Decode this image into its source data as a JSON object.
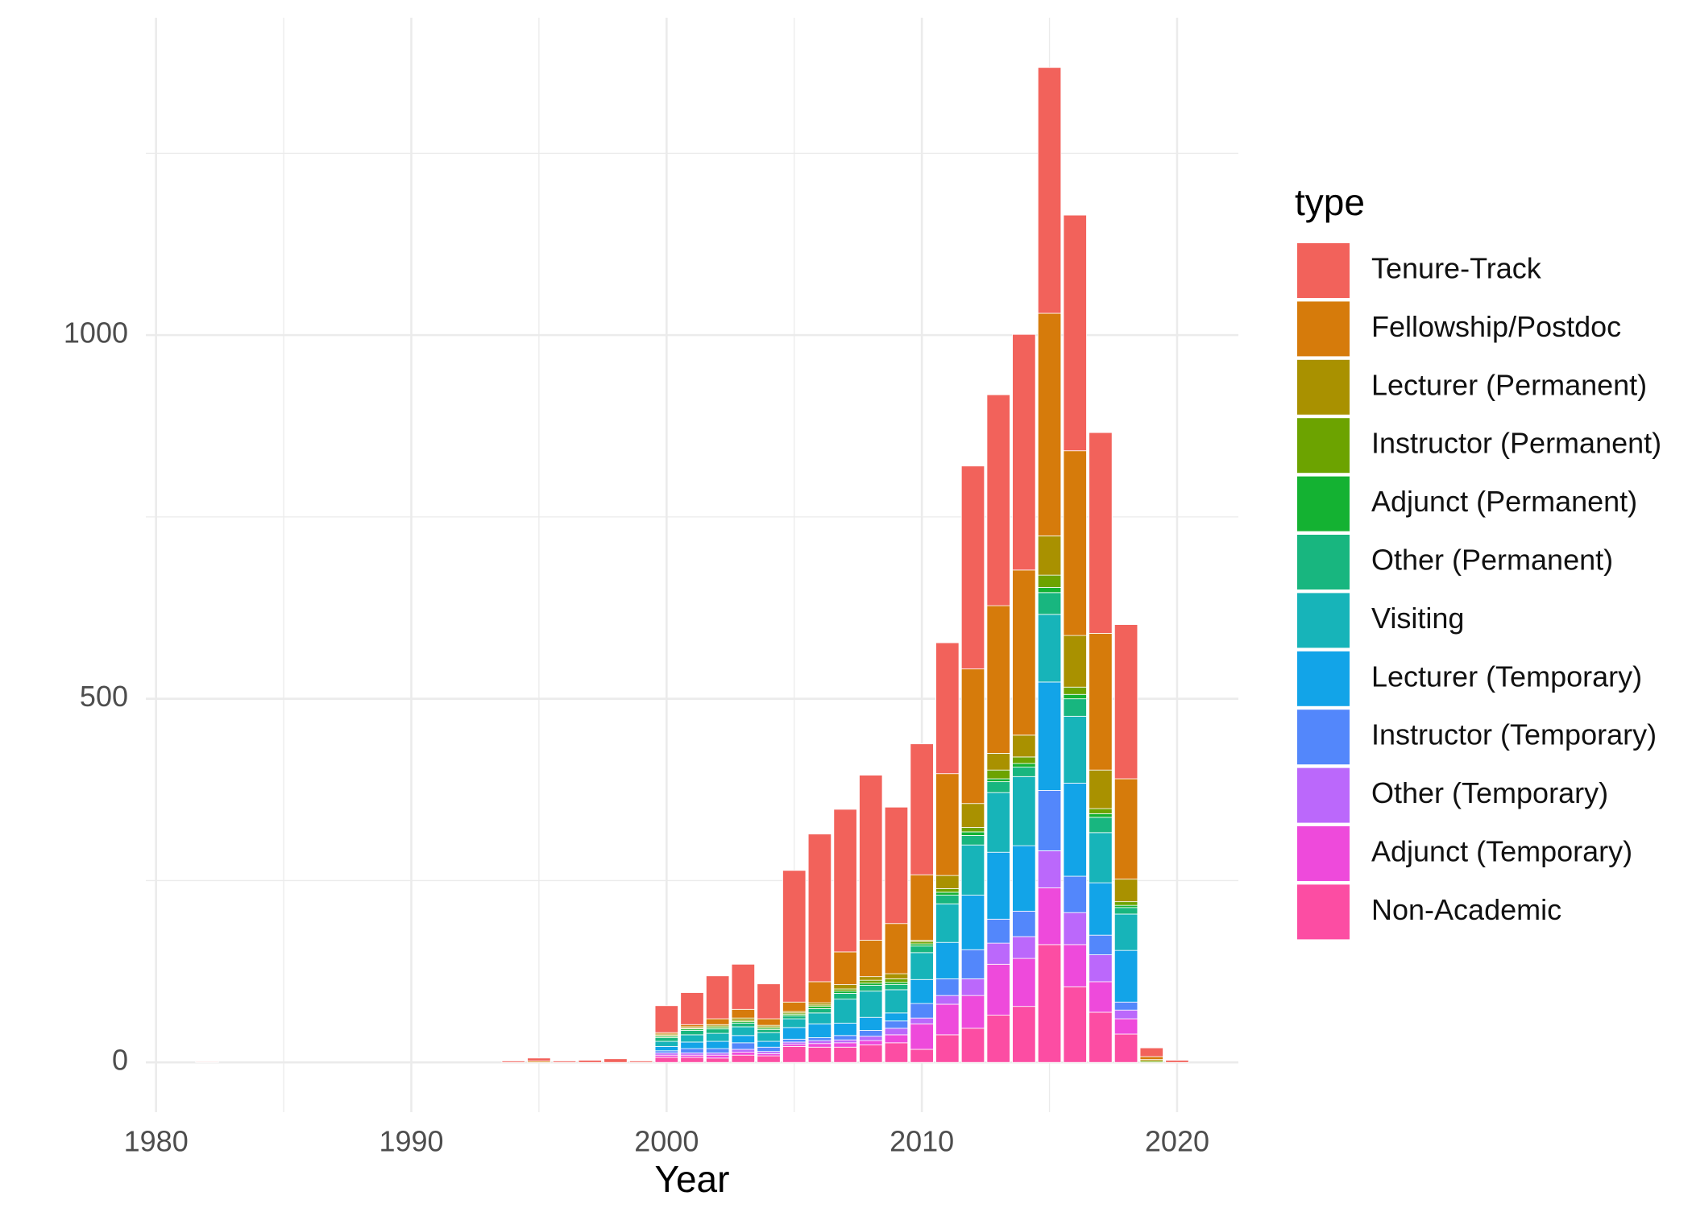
{
  "chart_data": {
    "type": "bar",
    "stacked": true,
    "xlabel": "Year",
    "legend_title": "type",
    "legend_position": "right",
    "grid": true,
    "xticks": [
      1980,
      1990,
      2000,
      2010,
      2020
    ],
    "yticks": [
      0,
      500,
      1000
    ],
    "xlim": [
      1979.6,
      2022.4
    ],
    "ylim": [
      -68.4,
      1436.4
    ],
    "x": [
      1982,
      1994,
      1995,
      1996,
      1997,
      1998,
      1999,
      2000,
      2001,
      2002,
      2003,
      2004,
      2005,
      2006,
      2007,
      2008,
      2009,
      2010,
      2011,
      2012,
      2013,
      2014,
      2015,
      2016,
      2017,
      2018,
      2019,
      2020
    ],
    "series": [
      {
        "name": "Tenure-Track",
        "color": "#F2625B",
        "values": [
          1,
          2,
          4,
          2,
          3,
          5,
          2,
          37,
          44,
          59,
          62,
          48,
          181,
          203,
          196,
          227,
          160,
          180,
          180,
          279,
          290,
          324,
          338,
          324,
          276,
          212,
          12,
          3
        ]
      },
      {
        "name": "Fellowship/Postdoc",
        "color": "#D67B0B",
        "values": [
          0,
          0,
          2,
          0,
          0,
          0,
          0,
          2,
          3,
          8,
          12,
          9,
          13,
          29,
          45,
          50,
          69,
          90,
          140,
          185,
          203,
          227,
          306,
          254,
          188,
          138,
          4,
          0
        ]
      },
      {
        "name": "Lecturer (Permanent)",
        "color": "#A99100",
        "values": [
          0,
          0,
          0,
          0,
          0,
          0,
          0,
          2,
          2,
          2,
          3,
          2,
          2,
          3,
          6,
          5,
          7,
          2,
          18,
          33,
          23,
          30,
          54,
          71,
          53,
          31,
          2,
          0
        ]
      },
      {
        "name": "Instructor (Permanent)",
        "color": "#6CA300",
        "values": [
          0,
          0,
          0,
          0,
          0,
          0,
          0,
          1,
          1,
          2,
          2,
          2,
          2,
          2,
          3,
          4,
          5,
          3,
          5,
          6,
          12,
          9,
          17,
          10,
          7,
          5,
          2,
          0
        ]
      },
      {
        "name": "Adjunct (Permanent)",
        "color": "#14B232",
        "values": [
          0,
          0,
          0,
          0,
          0,
          0,
          0,
          2,
          2,
          2,
          2,
          2,
          2,
          3,
          3,
          3,
          3,
          3,
          4,
          5,
          4,
          5,
          7,
          6,
          5,
          3,
          0,
          0
        ]
      },
      {
        "name": "Other (Permanent)",
        "color": "#18B67F",
        "values": [
          0,
          0,
          0,
          0,
          0,
          0,
          0,
          5,
          6,
          6,
          5,
          4,
          4,
          6,
          8,
          8,
          7,
          9,
          12,
          13,
          15,
          13,
          30,
          24,
          21,
          9,
          0,
          0
        ]
      },
      {
        "name": "Visiting",
        "color": "#17B4B9",
        "values": [
          0,
          0,
          0,
          0,
          0,
          0,
          0,
          7,
          10,
          11,
          12,
          12,
          12,
          15,
          33,
          36,
          32,
          37,
          53,
          69,
          82,
          95,
          93,
          92,
          69,
          50,
          0,
          0
        ]
      },
      {
        "name": "Lecturer (Temporary)",
        "color": "#12A4E8",
        "values": [
          0,
          0,
          0,
          0,
          0,
          0,
          0,
          6,
          9,
          10,
          10,
          8,
          16,
          19,
          17,
          18,
          11,
          33,
          50,
          75,
          92,
          90,
          149,
          128,
          72,
          71,
          0,
          0
        ]
      },
      {
        "name": "Instructor (Temporary)",
        "color": "#5387FB",
        "values": [
          0,
          0,
          0,
          0,
          0,
          0,
          0,
          3,
          6,
          6,
          9,
          6,
          4,
          4,
          6,
          8,
          10,
          20,
          23,
          40,
          33,
          35,
          83,
          50,
          27,
          11,
          0,
          0
        ]
      },
      {
        "name": "Other (Temporary)",
        "color": "#BB68FB",
        "values": [
          0,
          0,
          0,
          0,
          0,
          0,
          0,
          3,
          3,
          3,
          4,
          3,
          3,
          4,
          4,
          6,
          9,
          8,
          12,
          23,
          29,
          30,
          51,
          44,
          37,
          12,
          0,
          0
        ]
      },
      {
        "name": "Adjunct (Temporary)",
        "color": "#EE4ADB",
        "values": [
          0,
          0,
          0,
          0,
          0,
          0,
          0,
          3,
          3,
          4,
          4,
          3,
          3,
          5,
          6,
          6,
          11,
          35,
          42,
          45,
          70,
          66,
          78,
          58,
          42,
          21,
          0,
          0
        ]
      },
      {
        "name": "Non-Academic",
        "color": "#FC4DA3",
        "values": [
          0,
          0,
          0,
          0,
          0,
          0,
          0,
          7,
          7,
          6,
          10,
          9,
          22,
          21,
          21,
          24,
          27,
          18,
          38,
          47,
          65,
          77,
          162,
          104,
          69,
          39,
          0,
          0
        ]
      }
    ]
  }
}
